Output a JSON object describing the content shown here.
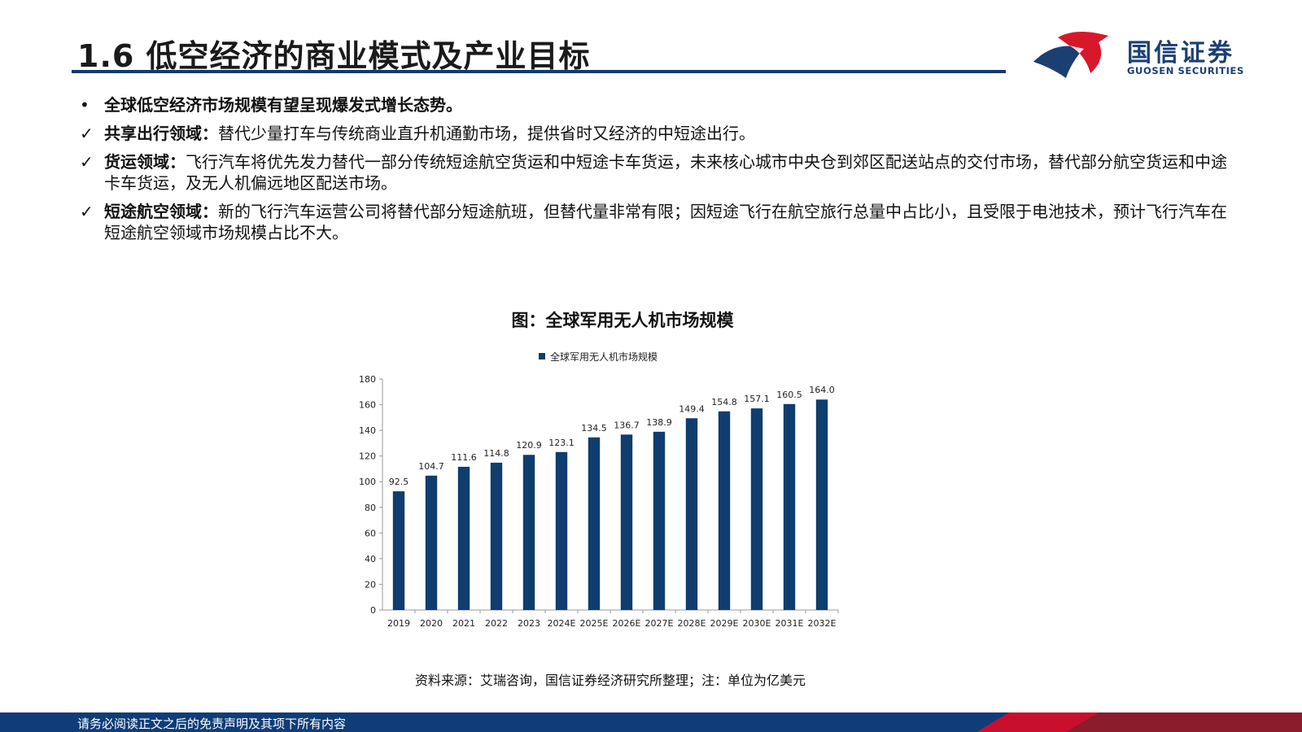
{
  "page": {
    "title": "1.6 低空经济的商业模式及产业目标"
  },
  "logo": {
    "name_cn": "国信证券",
    "name_en": "GUOSEN SECURITIES",
    "colors": {
      "red": "#d7182a",
      "blue": "#1b3f73"
    }
  },
  "bullets": [
    {
      "mark": "•",
      "lead": "全球低空经济市场规模有望呈现爆发式增长态势。",
      "text": ""
    },
    {
      "mark": "✓",
      "lead": "共享出行领域：",
      "text": "替代少量打车与传统商业直升机通勤市场，提供省时又经济的中短途出行。"
    },
    {
      "mark": "✓",
      "lead": "货运领域：",
      "text": "飞行汽车将优先发力替代一部分传统短途航空货运和中短途卡车货运，未来核心城市中央仓到郊区配送站点的交付市场，替代部分航空货运和中途卡车货运，及无人机偏远地区配送市场。"
    },
    {
      "mark": "✓",
      "lead": "短途航空领域：",
      "text": "新的飞行汽车运营公司将替代部分短途航班，但替代量非常有限；因短途飞行在航空旅行总量中占比小，且受限于电池技术，预计飞行汽车在短途航空领域市场规模占比不大。"
    }
  ],
  "chart_title": "图：全球军用无人机市场规模",
  "chart_data": {
    "type": "bar",
    "categories": [
      "2019",
      "2020",
      "2021",
      "2022",
      "2023",
      "2024E",
      "2025E",
      "2026E",
      "2027E",
      "2028E",
      "2029E",
      "2030E",
      "2031E",
      "2032E"
    ],
    "series": [
      {
        "name": "全球军用无人机市场规模",
        "values": [
          92.5,
          104.7,
          111.6,
          114.8,
          120.9,
          123.1,
          134.5,
          136.7,
          138.9,
          149.4,
          154.8,
          157.1,
          160.5,
          164.0
        ]
      }
    ],
    "value_labels": [
      "92.5",
      "104.7",
      "111.6",
      "114.8",
      "120.9",
      "123.1",
      "134.5",
      "136.7",
      "138.9",
      "149.4",
      "154.8",
      "157.1",
      "160.5",
      "164.0"
    ],
    "ylim": [
      0,
      180
    ],
    "yticks": [
      0,
      20,
      40,
      60,
      80,
      100,
      120,
      140,
      160,
      180
    ],
    "legend_position": "top",
    "bar_color": "#0f3d6e",
    "grid": false
  },
  "source_note": "资料来源：艾瑞咨询，国信证券经济研究所整理；注：单位为亿美元",
  "footer": {
    "text": "请务必阅读正文之后的免责声明及其项下所有内容",
    "colors": {
      "blue": "#0f3d78",
      "red": "#c8102e"
    }
  }
}
